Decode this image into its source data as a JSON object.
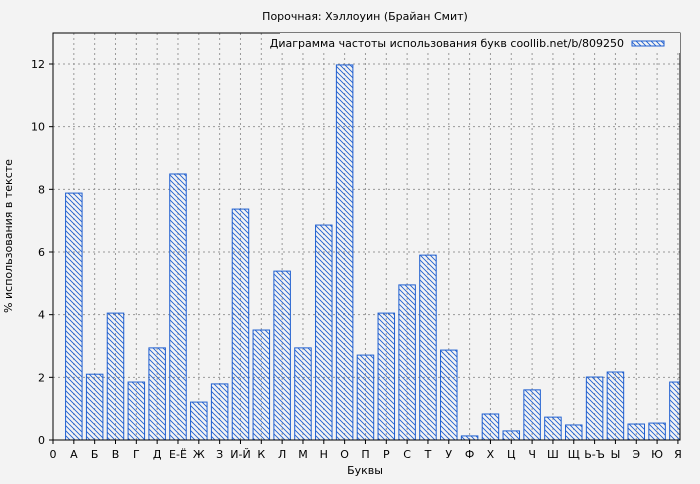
{
  "chart_data": {
    "type": "bar",
    "title": "Порочная: Хэллоуин (Брайан Смит)",
    "xlabel": "Буквы",
    "ylabel": "% использования в тексте",
    "legend": {
      "label": "Диаграмма частоты использования букв coollib.net/b/809250",
      "placement": "top-right"
    },
    "x_origin_label": "0",
    "categories": [
      "А",
      "Б",
      "В",
      "Г",
      "Д",
      "Е-Ё",
      "Ж",
      "З",
      "И-Й",
      "К",
      "Л",
      "М",
      "Н",
      "О",
      "П",
      "Р",
      "С",
      "Т",
      "У",
      "Ф",
      "Х",
      "Ц",
      "Ч",
      "Ш",
      "Щ",
      "Ь-Ъ",
      "Ы",
      "Э",
      "Ю",
      "Я"
    ],
    "values": [
      7.88,
      2.1,
      4.05,
      1.85,
      2.94,
      8.49,
      1.21,
      1.79,
      7.37,
      3.51,
      5.39,
      2.94,
      6.86,
      11.97,
      2.71,
      4.05,
      4.95,
      5.9,
      2.87,
      0.13,
      0.83,
      0.29,
      1.6,
      0.73,
      0.48,
      2.01,
      2.17,
      0.51,
      0.54,
      1.85
    ],
    "ylim": [
      0,
      13
    ],
    "yticks": [
      0,
      2,
      4,
      6,
      8,
      10,
      12
    ],
    "grid": true,
    "colors": {
      "bar": "#1f5fd0",
      "background": "#f3f3f3"
    }
  }
}
